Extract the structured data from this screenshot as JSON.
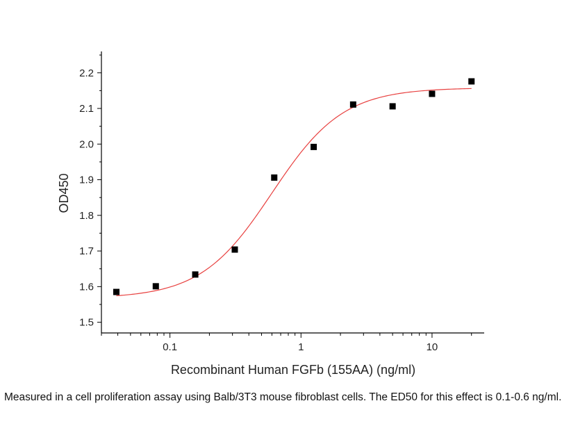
{
  "chart_data": {
    "type": "scatter",
    "xscale": "log",
    "xlabel": "Recombinant Human FGFb (155AA) (ng/ml)",
    "ylabel": "OD450",
    "xlim": [
      0.03,
      25
    ],
    "ylim": [
      1.47,
      2.26
    ],
    "x_ticks": [
      0.1,
      1,
      10
    ],
    "x_tick_labels": [
      "0.1",
      "1",
      "10"
    ],
    "y_ticks": [
      1.5,
      1.6,
      1.7,
      1.8,
      1.9,
      2.0,
      2.1,
      2.2
    ],
    "y_tick_labels": [
      "1.5",
      "1.6",
      "1.7",
      "1.8",
      "1.9",
      "2.0",
      "2.1",
      "2.2"
    ],
    "points": [
      {
        "x": 0.039,
        "y": 1.585
      },
      {
        "x": 0.078,
        "y": 1.601
      },
      {
        "x": 0.156,
        "y": 1.634
      },
      {
        "x": 0.3125,
        "y": 1.704
      },
      {
        "x": 0.625,
        "y": 1.906
      },
      {
        "x": 1.25,
        "y": 1.992
      },
      {
        "x": 2.5,
        "y": 2.111
      },
      {
        "x": 5,
        "y": 2.106
      },
      {
        "x": 10,
        "y": 2.141
      },
      {
        "x": 20,
        "y": 2.176
      }
    ],
    "fit": {
      "model": "4PL",
      "bottom": 1.567,
      "top": 2.158,
      "ec50": 0.6,
      "hill": 1.6,
      "x_range": [
        0.039,
        20
      ]
    },
    "marker_color": "#000000",
    "fit_color": "#e8403f",
    "grid": false
  },
  "caption": "Measured in a cell proliferation assay using Balb/3T3 mouse fibroblast cells. The ED50 for this effect is 0.1-0.6 ng/ml."
}
